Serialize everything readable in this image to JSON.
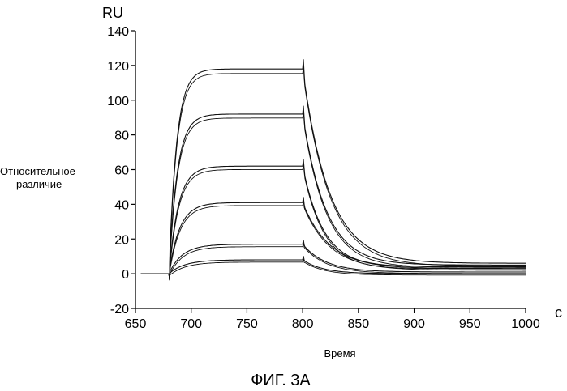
{
  "chart_data": {
    "type": "line",
    "figure_caption": "ФИГ. 3А",
    "y_unit": "RU",
    "x_unit": "с",
    "ylabel_lines": [
      "Относительное",
      "различие"
    ],
    "xlabel": "Время",
    "xlim": [
      650,
      1000
    ],
    "ylim": [
      -20,
      140
    ],
    "x_ticks": [
      650,
      700,
      750,
      800,
      850,
      900,
      950,
      1000
    ],
    "y_ticks": [
      -20,
      0,
      20,
      40,
      60,
      80,
      100,
      120,
      140
    ],
    "grid": false,
    "legend": "none",
    "injection_start": 680,
    "injection_end": 800,
    "series": [
      {
        "plateau": 118,
        "end_value": 6
      },
      {
        "plateau": 92,
        "end_value": 5
      },
      {
        "plateau": 62,
        "end_value": 4
      },
      {
        "plateau": 41,
        "end_value": 3
      },
      {
        "plateau": 17,
        "end_value": 1
      },
      {
        "plateau": 8,
        "end_value": 0
      }
    ]
  }
}
